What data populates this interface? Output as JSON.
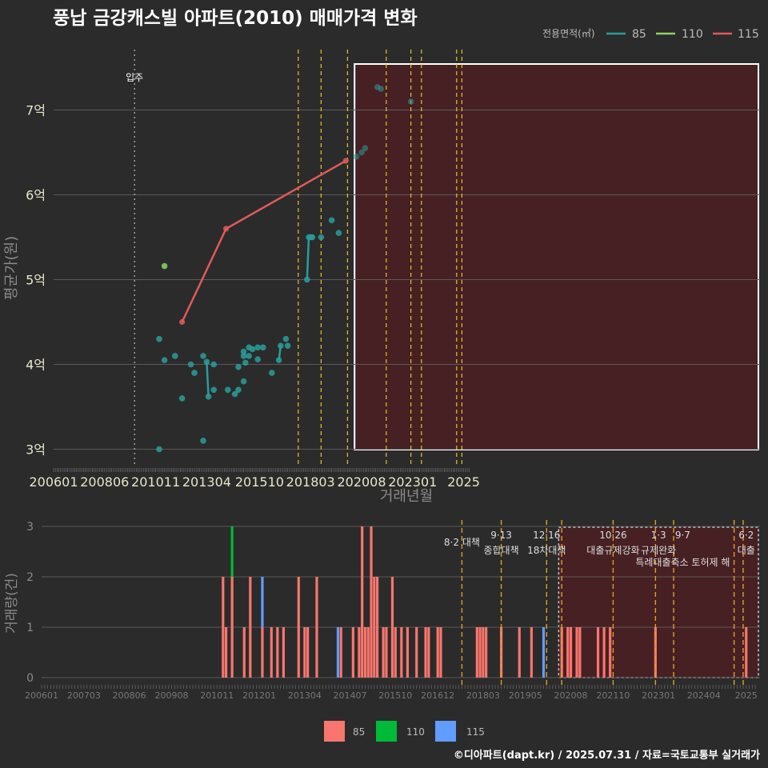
{
  "title": "풍납 금강캐스빌 아파트(2010) 매매가격 변화",
  "footer": "©디아파트(dapt.kr) / 2025.07.31 / 자료=국토교통부 실거래가",
  "colors": {
    "bg": "#2b2b2b",
    "grid": "#5a5a5a",
    "s85": "#2a9d9a",
    "s110": "#8ed16a",
    "s115": "#e05a5a",
    "bar85": "#f8766d",
    "bar110": "#00ba38",
    "bar115": "#619cff",
    "policy": "#e6c229",
    "highlight": "#4a1f22"
  },
  "chart_data": [
    {
      "type": "line",
      "xlabel": "거래년월",
      "ylabel": "평균가(원)",
      "x_ticks": [
        "200601",
        "200806",
        "201011",
        "201304",
        "201510",
        "201803",
        "202008",
        "202301",
        "2025"
      ],
      "y_ticks": [
        "3억",
        "4억",
        "5억",
        "6억",
        "7억"
      ],
      "ylim": [
        3,
        7.5
      ],
      "legend": {
        "title": "전용면적(㎡)",
        "items": [
          "85",
          "110",
          "115"
        ],
        "position": "top-right"
      },
      "annotation": "입주",
      "series": [
        {
          "name": "85",
          "points": [
            [
              "2011-01",
              3.0
            ],
            [
              "2011-01",
              4.3
            ],
            [
              "2011-04",
              4.05
            ],
            [
              "2011-10",
              4.1
            ],
            [
              "2012-02",
              3.6
            ],
            [
              "2012-07",
              4.0
            ],
            [
              "2012-09",
              3.9
            ],
            [
              "2013-02",
              4.1
            ],
            [
              "2013-02",
              3.1
            ],
            [
              "2013-04",
              4.03
            ],
            [
              "2013-05",
              3.62
            ],
            [
              "2013-08",
              4.0
            ],
            [
              "2013-08",
              3.7
            ],
            [
              "2014-04",
              3.7
            ],
            [
              "2014-08",
              3.65
            ],
            [
              "2014-10",
              3.7
            ],
            [
              "2014-10",
              3.97
            ],
            [
              "2015-01",
              3.8
            ],
            [
              "2015-01",
              4.1
            ],
            [
              "2015-01",
              4.15
            ],
            [
              "2015-02",
              4.02
            ],
            [
              "2015-04",
              4.2
            ],
            [
              "2015-04",
              4.1
            ],
            [
              "2015-06",
              4.18
            ],
            [
              "2015-09",
              4.2
            ],
            [
              "2015-09",
              4.06
            ],
            [
              "2015-12",
              4.2
            ],
            [
              "2016-05",
              3.9
            ],
            [
              "2016-09",
              4.05
            ],
            [
              "2016-10",
              4.22
            ],
            [
              "2017-01",
              4.3
            ],
            [
              "2017-02",
              4.22
            ],
            [
              "2018-01",
              5.0
            ],
            [
              "2018-02",
              5.5
            ],
            [
              "2018-03",
              5.5
            ],
            [
              "2018-04",
              5.5
            ],
            [
              "2018-09",
              5.5
            ],
            [
              "2019-03",
              5.7
            ],
            [
              "2019-07",
              5.55
            ],
            [
              "2020-05",
              6.45
            ],
            [
              "2020-08",
              6.5
            ],
            [
              "2020-10",
              6.55
            ],
            [
              "2021-05",
              7.27
            ],
            [
              "2021-07",
              7.25
            ],
            [
              "2022-12",
              7.1
            ]
          ]
        },
        {
          "name": "110",
          "points": [
            [
              "2011-04",
              5.16
            ]
          ]
        },
        {
          "name": "115",
          "points": [
            [
              "2012-02",
              4.5
            ],
            [
              "2014-03",
              5.6
            ],
            [
              "2019-11",
              6.4
            ]
          ]
        }
      ]
    },
    {
      "type": "bar",
      "ylabel": "거래량(건)",
      "x_ticks": [
        "200601",
        "200703",
        "200806",
        "200908",
        "201011",
        "201201",
        "201304",
        "201407",
        "201510",
        "201612",
        "201803",
        "201905",
        "202008",
        "202110",
        "202301",
        "202404",
        "2025"
      ],
      "y_ticks": [
        "0",
        "1",
        "2",
        "3"
      ],
      "ylim": [
        0,
        3
      ],
      "legend": {
        "items": [
          "85",
          "110",
          "115"
        ],
        "position": "bottom"
      },
      "series": [
        {
          "name": "85",
          "months": [
            [
              "2011-01",
              2
            ],
            [
              "2011-02",
              1
            ],
            [
              "2011-04",
              2
            ],
            [
              "2011-08",
              1
            ],
            [
              "2011-10",
              2
            ],
            [
              "2012-02",
              1
            ],
            [
              "2012-05",
              1
            ],
            [
              "2012-07",
              1
            ],
            [
              "2012-09",
              1
            ],
            [
              "2013-02",
              2
            ],
            [
              "2013-04",
              1
            ],
            [
              "2013-05",
              1
            ],
            [
              "2013-08",
              2
            ],
            [
              "2014-04",
              1
            ],
            [
              "2014-08",
              1
            ],
            [
              "2014-10",
              1
            ],
            [
              "2014-11",
              3
            ],
            [
              "2014-12",
              1
            ],
            [
              "2015-01",
              1
            ],
            [
              "2015-02",
              3
            ],
            [
              "2015-03",
              2
            ],
            [
              "2015-04",
              2
            ],
            [
              "2015-06",
              1
            ],
            [
              "2015-07",
              1
            ],
            [
              "2015-09",
              2
            ],
            [
              "2015-10",
              1
            ],
            [
              "2015-12",
              1
            ],
            [
              "2016-02",
              1
            ],
            [
              "2016-05",
              1
            ],
            [
              "2016-08",
              1
            ],
            [
              "2016-09",
              1
            ],
            [
              "2016-12",
              1
            ],
            [
              "2017-01",
              1
            ],
            [
              "2018-01",
              1
            ],
            [
              "2018-02",
              1
            ],
            [
              "2018-03",
              1
            ],
            [
              "2018-04",
              1
            ],
            [
              "2018-09",
              1
            ],
            [
              "2019-03",
              1
            ],
            [
              "2019-07",
              1
            ],
            [
              "2020-05",
              1
            ],
            [
              "2020-07",
              1
            ],
            [
              "2020-08",
              1
            ],
            [
              "2020-10",
              1
            ],
            [
              "2020-11",
              1
            ],
            [
              "2021-05",
              1
            ],
            [
              "2021-07",
              1
            ],
            [
              "2021-09",
              1
            ],
            [
              "2022-12",
              1
            ],
            [
              "2025-06",
              1
            ]
          ]
        },
        {
          "name": "110",
          "months": [
            [
              "2011-04",
              1
            ]
          ]
        },
        {
          "name": "115",
          "months": [
            [
              "2012-02",
              1
            ],
            [
              "2014-03",
              1
            ],
            [
              "2019-11",
              1
            ]
          ]
        }
      ],
      "policy_labels": [
        {
          "date": "2017-08",
          "text": "8·2 대책"
        },
        {
          "date": "2018-09",
          "date_label": "9·13",
          "text": "종합대책"
        },
        {
          "date": "2019-12",
          "date_label": "12·16",
          "text": "18차대책"
        },
        {
          "date": "2021-10",
          "date_label": "10·26",
          "text": "대출규제강화"
        },
        {
          "date": "2023-01",
          "date_label": "1·3",
          "text": "규제완화"
        },
        {
          "date": "2023-09",
          "date_label": "9·7",
          "text": "특례대출축소 토허제 해"
        },
        {
          "date": "2025-06",
          "date_label": "6·2",
          "text": "대출"
        }
      ]
    }
  ]
}
